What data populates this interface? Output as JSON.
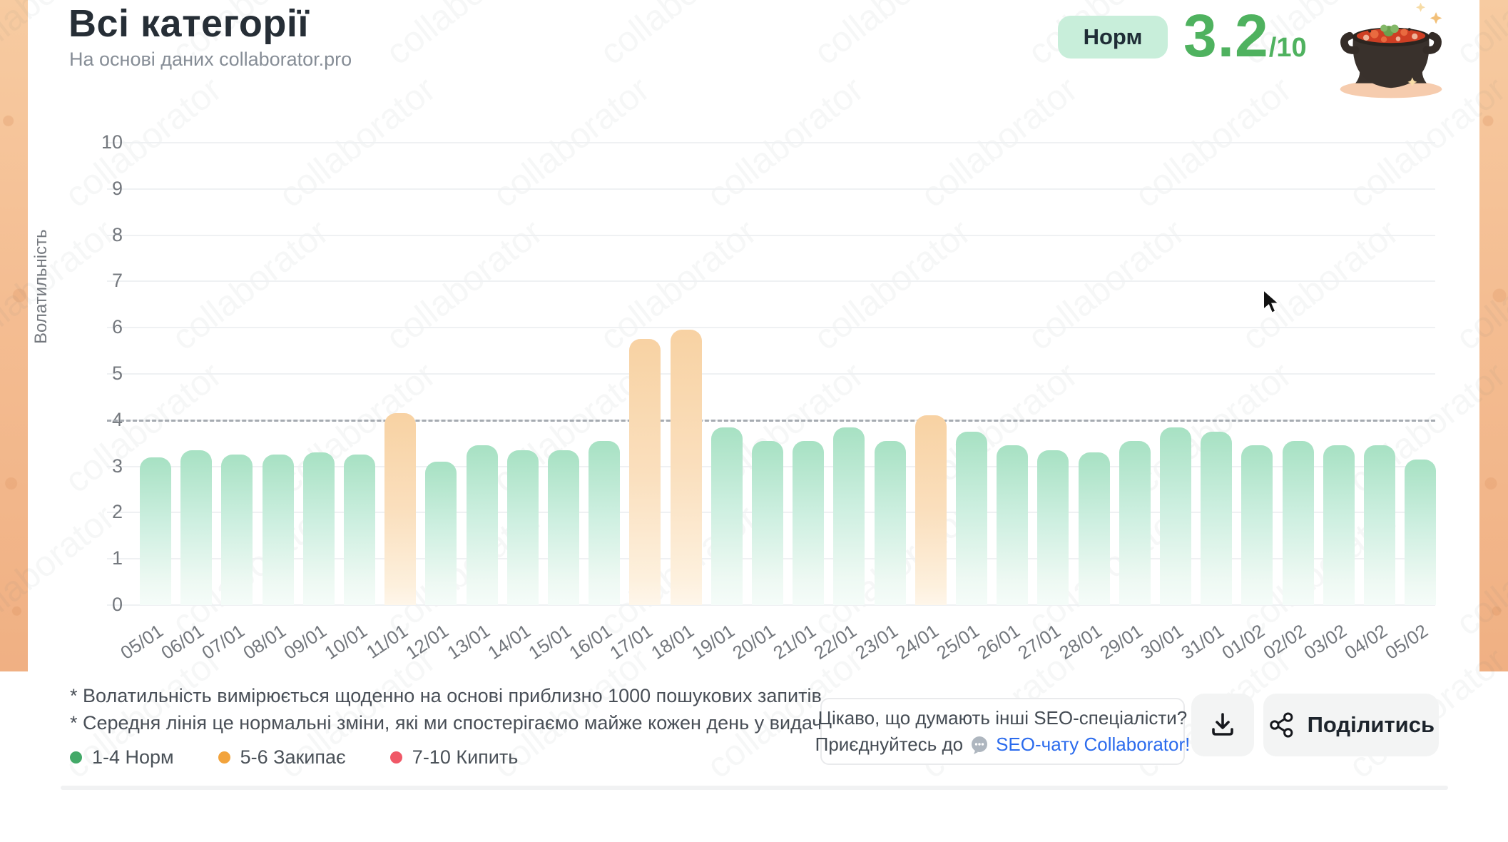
{
  "header": {
    "title": "Всі категорії",
    "subtitle": "На основі даних collaborator.pro",
    "status_badge": "Норм",
    "score": "3.2",
    "score_suffix": "/10",
    "score_color": "#4fb25f",
    "badge_bg": "#c8eeda",
    "pot_icon": "borscht-pot-icon"
  },
  "chart_data": {
    "type": "bar",
    "title": "Всі категорії",
    "ylabel": "Волатильність",
    "xlabel": "",
    "ylim": [
      0,
      10
    ],
    "y_ticks": [
      0,
      1,
      2,
      3,
      4,
      5,
      6,
      7,
      8,
      9,
      10
    ],
    "threshold_line": 4,
    "grid": true,
    "categories": [
      "05/01",
      "06/01",
      "07/01",
      "08/01",
      "09/01",
      "10/01",
      "11/01",
      "12/01",
      "13/01",
      "14/01",
      "15/01",
      "16/01",
      "17/01",
      "18/01",
      "19/01",
      "20/01",
      "21/01",
      "22/01",
      "23/01",
      "24/01",
      "25/01",
      "26/01",
      "27/01",
      "28/01",
      "29/01",
      "30/01",
      "31/01",
      "01/02",
      "02/02",
      "03/02",
      "04/02",
      "05/02"
    ],
    "values": [
      3.2,
      3.35,
      3.25,
      3.25,
      3.3,
      3.25,
      4.15,
      3.1,
      3.45,
      3.35,
      3.35,
      3.55,
      5.75,
      5.95,
      3.85,
      3.55,
      3.55,
      3.85,
      3.55,
      4.1,
      3.75,
      3.45,
      3.35,
      3.3,
      3.55,
      3.85,
      3.75,
      3.45,
      3.55,
      3.45,
      3.45,
      3.15
    ],
    "color_normal_top": "#a7e1c3",
    "color_elevated_top": "#f8d2a3",
    "elevated_above": 4,
    "legend_position": "bottom-left"
  },
  "footnotes": [
    "* Волатильність вимірюється щоденно на основі приблизно 1000 пошукових запитів.",
    "* Середня лінія це нормальні зміни, які ми спостерігаємо майже кожен день у видачі"
  ],
  "legend": [
    {
      "label": "1-4 Норм",
      "color": "#43a968"
    },
    {
      "label": "5-6 Закипає",
      "color": "#f2a33c"
    },
    {
      "label": "7-10 Кипить",
      "color": "#f05867"
    }
  ],
  "cta": {
    "line1": "Цікаво, що думають інші SEO-спеціалісти?",
    "line2_prefix": "Приєднуйтесь до",
    "line2_link": "SEO-чату Collaborator!",
    "link_color": "#2b6bed",
    "chat_icon": "chat-bubble-icon"
  },
  "actions": {
    "download_icon": "download-icon",
    "share_icon": "share-nodes-icon",
    "share_label": "Поділитись"
  },
  "watermark": "collaborator",
  "colors": {
    "side_strip": "#f4bd92",
    "dashed_line": "#a6abb1",
    "gridline": "#eff1f3",
    "tick_text": "#74787e"
  }
}
